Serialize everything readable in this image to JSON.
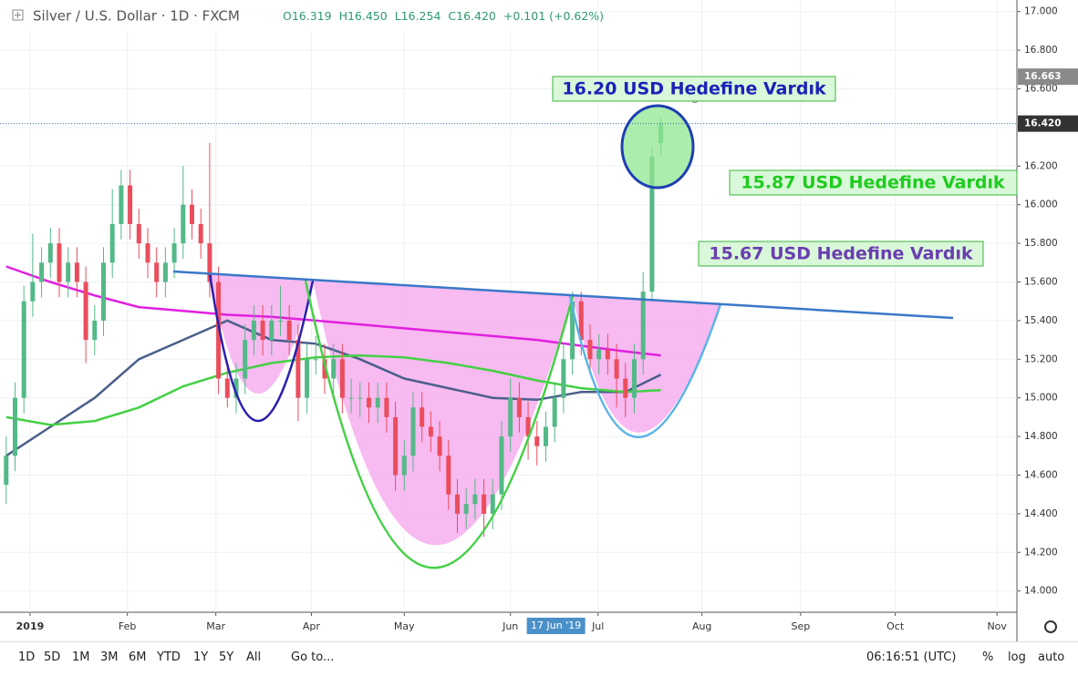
{
  "chart_data": {
    "type": "candlestick",
    "title": "Silver / U.S. Dollar · 1D · FXCM",
    "ohlc_header": [
      "O16.319",
      "H16.450",
      "L16.254",
      "C16.420",
      "+0.101 (+0.62%)"
    ],
    "up_color": "#53b987",
    "down_color": "#eb4d5c",
    "x": [
      0,
      2,
      4,
      6,
      8,
      10,
      12,
      14,
      16,
      18,
      20,
      22,
      24,
      26,
      28,
      30,
      32,
      34,
      36,
      38,
      40,
      42,
      44,
      46,
      48,
      50,
      52,
      54,
      56,
      58,
      60,
      62,
      64,
      66,
      68,
      70,
      72,
      74,
      76,
      78,
      80,
      82,
      84,
      86,
      88,
      90,
      92,
      94,
      96,
      98,
      100,
      102,
      104,
      106,
      108,
      110,
      112,
      114,
      116,
      118,
      120,
      122,
      124,
      126,
      128,
      130,
      132,
      134,
      136,
      138,
      140,
      142,
      144,
      146,
      148
    ],
    "open": [
      14.55,
      14.7,
      15.0,
      15.5,
      15.6,
      15.7,
      15.8,
      15.6,
      15.7,
      15.6,
      15.3,
      15.4,
      15.7,
      15.9,
      16.1,
      15.9,
      15.8,
      15.7,
      15.6,
      15.7,
      15.8,
      16.0,
      15.9,
      15.8,
      15.6,
      15.1,
      15.0,
      15.1,
      15.3,
      15.4,
      15.3,
      15.4,
      15.4,
      15.3,
      15.0,
      15.2,
      15.2,
      15.1,
      15.2,
      15.0,
      15.0,
      15.0,
      14.95,
      15.0,
      14.9,
      14.6,
      14.7,
      14.95,
      14.85,
      14.8,
      14.7,
      14.5,
      14.4,
      14.45,
      14.5,
      14.4,
      14.5,
      14.8,
      15.0,
      14.9,
      14.8,
      14.75,
      14.85,
      15.0,
      15.2,
      15.5,
      15.3,
      15.2,
      15.25,
      15.2,
      15.1,
      15.0,
      15.2,
      15.55,
      16.319
    ],
    "high": [
      14.8,
      15.08,
      15.58,
      15.85,
      15.78,
      15.88,
      15.88,
      15.78,
      15.78,
      15.68,
      15.48,
      15.78,
      16.08,
      16.18,
      16.18,
      15.98,
      15.88,
      15.78,
      15.78,
      15.88,
      16.2,
      16.08,
      15.98,
      16.32,
      15.68,
      15.18,
      15.18,
      15.38,
      15.48,
      15.48,
      15.48,
      15.58,
      15.48,
      15.38,
      15.28,
      15.32,
      15.28,
      15.28,
      15.28,
      15.1,
      15.08,
      15.08,
      15.08,
      15.08,
      14.98,
      14.78,
      15.03,
      15.03,
      14.93,
      14.88,
      14.78,
      14.58,
      14.53,
      14.58,
      14.58,
      14.58,
      14.88,
      15.1,
      15.08,
      14.98,
      14.88,
      14.93,
      15.08,
      15.28,
      15.55,
      15.55,
      15.38,
      15.33,
      15.33,
      15.28,
      15.18,
      15.28,
      15.65,
      16.3,
      16.45
    ],
    "low": [
      14.45,
      14.62,
      14.92,
      15.42,
      15.52,
      15.62,
      15.52,
      15.52,
      15.52,
      15.18,
      15.22,
      15.32,
      15.62,
      15.82,
      15.82,
      15.72,
      15.62,
      15.52,
      15.52,
      15.62,
      15.72,
      15.82,
      15.72,
      15.52,
      15.02,
      14.95,
      14.92,
      15.02,
      15.22,
      15.22,
      15.22,
      15.32,
      15.22,
      14.88,
      14.92,
      15.12,
      15.02,
      15.02,
      14.92,
      14.92,
      14.9,
      14.87,
      14.87,
      14.82,
      14.52,
      14.52,
      14.62,
      14.77,
      14.72,
      14.62,
      14.42,
      14.3,
      14.32,
      14.37,
      14.28,
      14.32,
      14.42,
      14.72,
      14.82,
      14.68,
      14.65,
      14.67,
      14.77,
      14.92,
      15.12,
      15.22,
      15.12,
      15.12,
      15.12,
      14.95,
      14.9,
      14.92,
      15.12,
      15.5,
      16.254
    ],
    "close": [
      14.7,
      15.0,
      15.5,
      15.6,
      15.7,
      15.8,
      15.6,
      15.7,
      15.6,
      15.3,
      15.4,
      15.7,
      15.9,
      16.1,
      15.9,
      15.8,
      15.7,
      15.6,
      15.7,
      15.8,
      16.0,
      15.9,
      15.8,
      15.6,
      15.1,
      15.0,
      15.1,
      15.3,
      15.4,
      15.3,
      15.4,
      15.4,
      15.3,
      15.0,
      15.2,
      15.2,
      15.1,
      15.2,
      15.0,
      15.0,
      15.0,
      14.95,
      15.0,
      14.9,
      14.6,
      14.7,
      14.95,
      14.85,
      14.8,
      14.7,
      14.5,
      14.4,
      14.45,
      14.5,
      14.4,
      14.5,
      14.8,
      15.0,
      14.9,
      14.8,
      14.75,
      14.85,
      15.0,
      15.2,
      15.5,
      15.3,
      15.2,
      15.25,
      15.2,
      15.1,
      15.0,
      15.2,
      15.55,
      16.25,
      16.42
    ],
    "lines_x": [
      0,
      10,
      20,
      30,
      40,
      50,
      60,
      70,
      80,
      90,
      100,
      110,
      120,
      130,
      140,
      148
    ],
    "lines": [
      {
        "color": "#e020e0",
        "values": [
          15.68,
          15.6,
          15.53,
          15.47,
          15.45,
          15.43,
          15.42,
          15.4,
          15.38,
          15.36,
          15.34,
          15.32,
          15.3,
          15.27,
          15.24,
          15.22
        ]
      },
      {
        "color": "#4a5f8a",
        "values": [
          14.7,
          14.85,
          15.0,
          15.2,
          15.3,
          15.4,
          15.3,
          15.28,
          15.2,
          15.1,
          15.05,
          15.0,
          14.99,
          15.03,
          15.03,
          15.12
        ]
      },
      {
        "color": "#44d044",
        "values": [
          14.9,
          14.86,
          14.88,
          14.95,
          15.06,
          15.13,
          15.18,
          15.21,
          15.22,
          15.21,
          15.18,
          15.14,
          15.09,
          15.05,
          15.03,
          15.04
        ]
      }
    ],
    "xlim": [
      -1.4,
      228.5
    ],
    "ylim": [
      13.89,
      17.06
    ],
    "xticks": [
      {
        "value": 5.4,
        "label": "2019"
      },
      {
        "value": 27.4,
        "label": "Feb"
      },
      {
        "value": 47.4,
        "label": "Mar"
      },
      {
        "value": 69,
        "label": "Apr"
      },
      {
        "value": 90,
        "label": "May"
      },
      {
        "value": 114,
        "label": "Jun"
      },
      {
        "value": 133.8,
        "label": "Jul"
      },
      {
        "value": 157.3,
        "label": "Aug"
      },
      {
        "value": 179.6,
        "label": "Sep"
      },
      {
        "value": 201,
        "label": "Oct"
      },
      {
        "value": 224,
        "label": "Nov"
      }
    ],
    "crosshair_x": {
      "value": 124.3,
      "label": "17 Jun '19"
    },
    "yticks": [
      {
        "value": 14,
        "label": "14.000"
      },
      {
        "value": 14.2,
        "label": "14.200"
      },
      {
        "value": 14.4,
        "label": "14.400"
      },
      {
        "value": 14.6,
        "label": "14.600"
      },
      {
        "value": 14.8,
        "label": "14.800"
      },
      {
        "value": 15,
        "label": "15.000"
      },
      {
        "value": 15.2,
        "label": "15.200"
      },
      {
        "value": 15.4,
        "label": "15.400"
      },
      {
        "value": 15.6,
        "label": "15.600"
      },
      {
        "value": 15.8,
        "label": "15.800"
      },
      {
        "value": 16,
        "label": "16.000"
      },
      {
        "value": 16.2,
        "label": "16.200"
      },
      {
        "value": 16.4,
        "label": "16.400"
      },
      {
        "value": 16.6,
        "label": "16.600"
      },
      {
        "value": 16.8,
        "label": "16.800"
      },
      {
        "value": 17,
        "label": "17.000"
      }
    ],
    "last_price": {
      "value": 16.42,
      "label": "16.420"
    },
    "marker_price": {
      "value": 16.663,
      "label": "16.663"
    },
    "annotations": [
      "16.20 USD Hedefine Vardık",
      "15.87 USD Hedefine Vardık",
      "15.67 USD Hedefine Vardık"
    ]
  },
  "toolbar": {
    "ranges": [
      "1D",
      "5D",
      "1M",
      "3M",
      "6M",
      "YTD",
      "1Y",
      "5Y",
      "All"
    ],
    "goto": "Go to...",
    "clock": "06:16:51 (UTC)",
    "options": [
      "%",
      "log",
      "auto"
    ]
  }
}
